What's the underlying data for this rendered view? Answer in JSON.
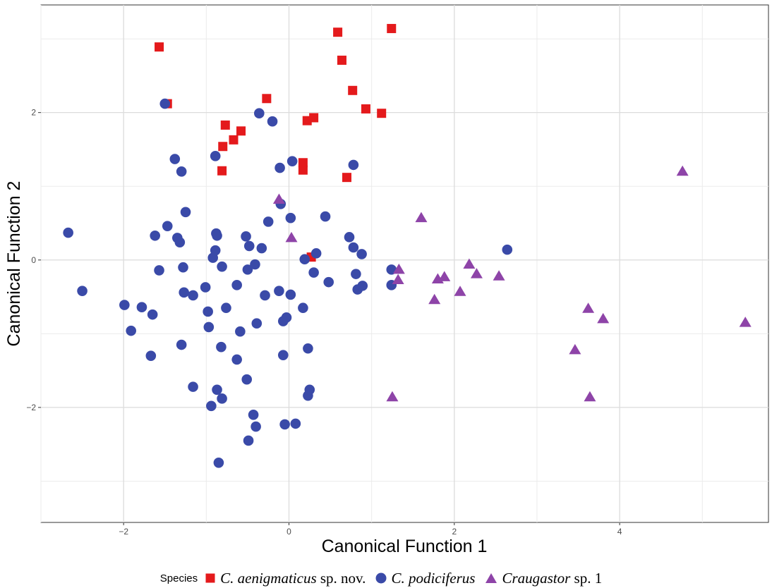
{
  "chart_data": {
    "type": "scatter",
    "xlabel": "Canonical Function 1",
    "ylabel": "Canonical Function 2",
    "xlim": [
      -3.0,
      5.8
    ],
    "ylim": [
      -3.56,
      3.46
    ],
    "xticks": [
      -2,
      0,
      2,
      4
    ],
    "yticks": [
      -2,
      0,
      2
    ],
    "grid": true,
    "legend": {
      "title": "Species",
      "placement": "bottom"
    },
    "series": [
      {
        "name_parts": [
          "C. aenigmaticus",
          " sp. nov."
        ],
        "name": "C. aenigmaticus sp. nov.",
        "marker": "square",
        "color": "#e41a1c",
        "points": [
          [
            -1.57,
            2.89
          ],
          [
            -1.47,
            2.12
          ],
          [
            -0.27,
            2.19
          ],
          [
            0.59,
            3.09
          ],
          [
            1.24,
            3.14
          ],
          [
            0.64,
            2.71
          ],
          [
            0.77,
            2.3
          ],
          [
            0.93,
            2.05
          ],
          [
            1.12,
            1.99
          ],
          [
            -0.77,
            1.83
          ],
          [
            -0.58,
            1.75
          ],
          [
            -0.67,
            1.63
          ],
          [
            -0.8,
            1.54
          ],
          [
            -0.81,
            1.21
          ],
          [
            0.22,
            1.89
          ],
          [
            0.3,
            1.93
          ],
          [
            0.17,
            1.32
          ],
          [
            0.17,
            1.22
          ],
          [
            0.7,
            1.12
          ],
          [
            0.27,
            0.04
          ]
        ]
      },
      {
        "name_parts": [
          "C. podiciferus",
          ""
        ],
        "name": "C. podiciferus",
        "marker": "circle",
        "color": "#3a4aa8",
        "points": [
          [
            -2.67,
            0.37
          ],
          [
            -2.5,
            -0.42
          ],
          [
            -1.99,
            -0.61
          ],
          [
            -1.91,
            -0.96
          ],
          [
            -1.78,
            -0.64
          ],
          [
            -1.65,
            -0.74
          ],
          [
            -1.67,
            -1.3
          ],
          [
            -1.62,
            0.33
          ],
          [
            -1.57,
            -0.14
          ],
          [
            -1.5,
            2.12
          ],
          [
            -1.47,
            0.46
          ],
          [
            -1.38,
            1.37
          ],
          [
            -1.35,
            0.3
          ],
          [
            -1.32,
            0.24
          ],
          [
            -1.3,
            1.2
          ],
          [
            -1.28,
            -0.1
          ],
          [
            -1.27,
            -0.44
          ],
          [
            -1.25,
            0.65
          ],
          [
            -1.3,
            -1.15
          ],
          [
            -1.16,
            -0.48
          ],
          [
            -1.16,
            -1.72
          ],
          [
            -1.01,
            -0.37
          ],
          [
            -0.98,
            -0.7
          ],
          [
            -0.97,
            -0.91
          ],
          [
            -0.94,
            -1.98
          ],
          [
            -0.92,
            0.03
          ],
          [
            -0.89,
            0.13
          ],
          [
            -0.89,
            1.41
          ],
          [
            -0.88,
            0.36
          ],
          [
            -0.87,
            0.33
          ],
          [
            -0.87,
            -1.76
          ],
          [
            -0.85,
            -2.75
          ],
          [
            -0.81,
            -0.09
          ],
          [
            -0.82,
            -1.18
          ],
          [
            -0.81,
            -1.88
          ],
          [
            -0.76,
            -0.65
          ],
          [
            -0.63,
            -0.34
          ],
          [
            -0.63,
            -1.35
          ],
          [
            -0.59,
            -0.97
          ],
          [
            -0.52,
            0.32
          ],
          [
            -0.5,
            -0.13
          ],
          [
            -0.48,
            0.19
          ],
          [
            -0.51,
            -1.62
          ],
          [
            -0.49,
            -2.45
          ],
          [
            -0.43,
            -2.1
          ],
          [
            -0.41,
            -0.06
          ],
          [
            -0.4,
            -2.26
          ],
          [
            -0.39,
            -0.86
          ],
          [
            -0.36,
            1.99
          ],
          [
            -0.33,
            0.16
          ],
          [
            -0.29,
            -0.48
          ],
          [
            -0.25,
            0.52
          ],
          [
            -0.2,
            1.88
          ],
          [
            -0.12,
            -0.42
          ],
          [
            -0.11,
            1.25
          ],
          [
            -0.1,
            0.76
          ],
          [
            -0.07,
            -0.83
          ],
          [
            -0.07,
            -1.29
          ],
          [
            -0.05,
            -2.23
          ],
          [
            -0.03,
            -0.78
          ],
          [
            0.02,
            -0.47
          ],
          [
            0.02,
            0.57
          ],
          [
            0.04,
            1.34
          ],
          [
            0.08,
            -2.22
          ],
          [
            0.17,
            -0.65
          ],
          [
            0.19,
            0.01
          ],
          [
            0.23,
            -1.2
          ],
          [
            0.23,
            -1.84
          ],
          [
            0.25,
            -1.76
          ],
          [
            0.3,
            -0.17
          ],
          [
            0.33,
            0.09
          ],
          [
            0.44,
            0.59
          ],
          [
            0.48,
            -0.3
          ],
          [
            0.73,
            0.31
          ],
          [
            0.78,
            0.17
          ],
          [
            0.78,
            1.29
          ],
          [
            0.81,
            -0.19
          ],
          [
            0.83,
            -0.4
          ],
          [
            0.88,
            0.08
          ],
          [
            0.89,
            -0.35
          ],
          [
            1.24,
            -0.13
          ],
          [
            1.24,
            -0.34
          ],
          [
            2.64,
            0.14
          ]
        ]
      },
      {
        "name_parts": [
          "Craugastor",
          " sp. 1"
        ],
        "name": "Craugastor sp. 1",
        "marker": "triangle",
        "color": "#8e44a8",
        "points": [
          [
            -0.12,
            0.82
          ],
          [
            0.03,
            0.3
          ],
          [
            1.33,
            -0.13
          ],
          [
            1.32,
            -0.27
          ],
          [
            1.6,
            0.57
          ],
          [
            1.76,
            -0.54
          ],
          [
            1.8,
            -0.26
          ],
          [
            1.88,
            -0.23
          ],
          [
            2.07,
            -0.43
          ],
          [
            2.18,
            -0.06
          ],
          [
            2.27,
            -0.19
          ],
          [
            2.54,
            -0.22
          ],
          [
            3.46,
            -1.22
          ],
          [
            3.62,
            -0.66
          ],
          [
            3.64,
            -1.86
          ],
          [
            3.8,
            -0.8
          ],
          [
            4.76,
            1.2
          ],
          [
            5.52,
            -0.85
          ],
          [
            1.25,
            -1.86
          ]
        ]
      }
    ]
  }
}
